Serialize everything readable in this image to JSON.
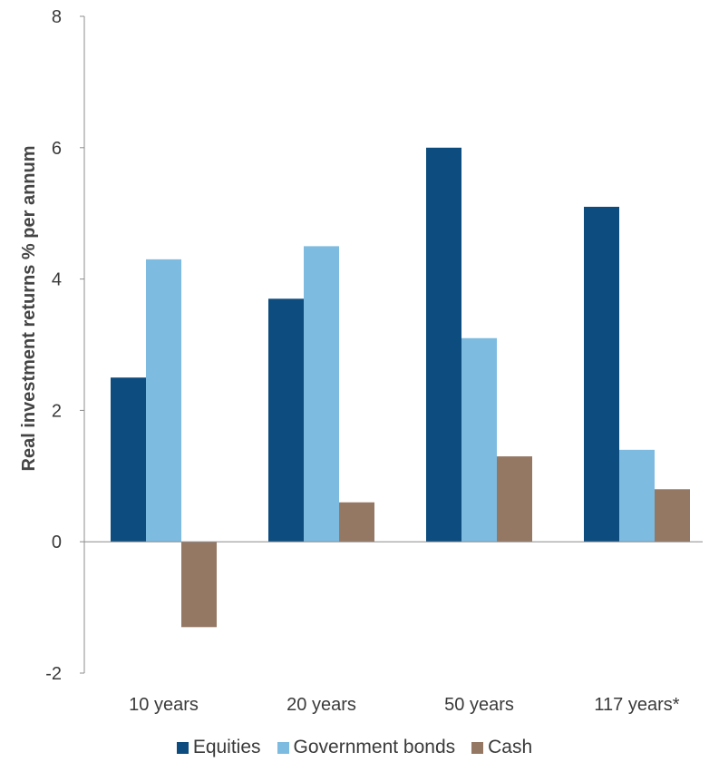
{
  "chart_data": {
    "type": "bar",
    "title": "",
    "xlabel": "",
    "ylabel": "Real investment returns % per annum",
    "categories": [
      "10 years",
      "20 years",
      "50 years",
      "117 years*"
    ],
    "series": [
      {
        "name": "Equities",
        "color": "#0d4c7e",
        "values": [
          2.5,
          3.7,
          6.0,
          5.1
        ]
      },
      {
        "name": "Government bonds",
        "color": "#7dbbe0",
        "values": [
          4.3,
          4.5,
          3.1,
          1.4
        ]
      },
      {
        "name": "Cash",
        "color": "#957864",
        "values": [
          -1.3,
          0.6,
          1.3,
          0.8
        ]
      }
    ],
    "ylim": [
      -2,
      8
    ],
    "yticks": [
      -2,
      0,
      2,
      4,
      6,
      8
    ],
    "grid": false,
    "legend_position": "bottom"
  }
}
